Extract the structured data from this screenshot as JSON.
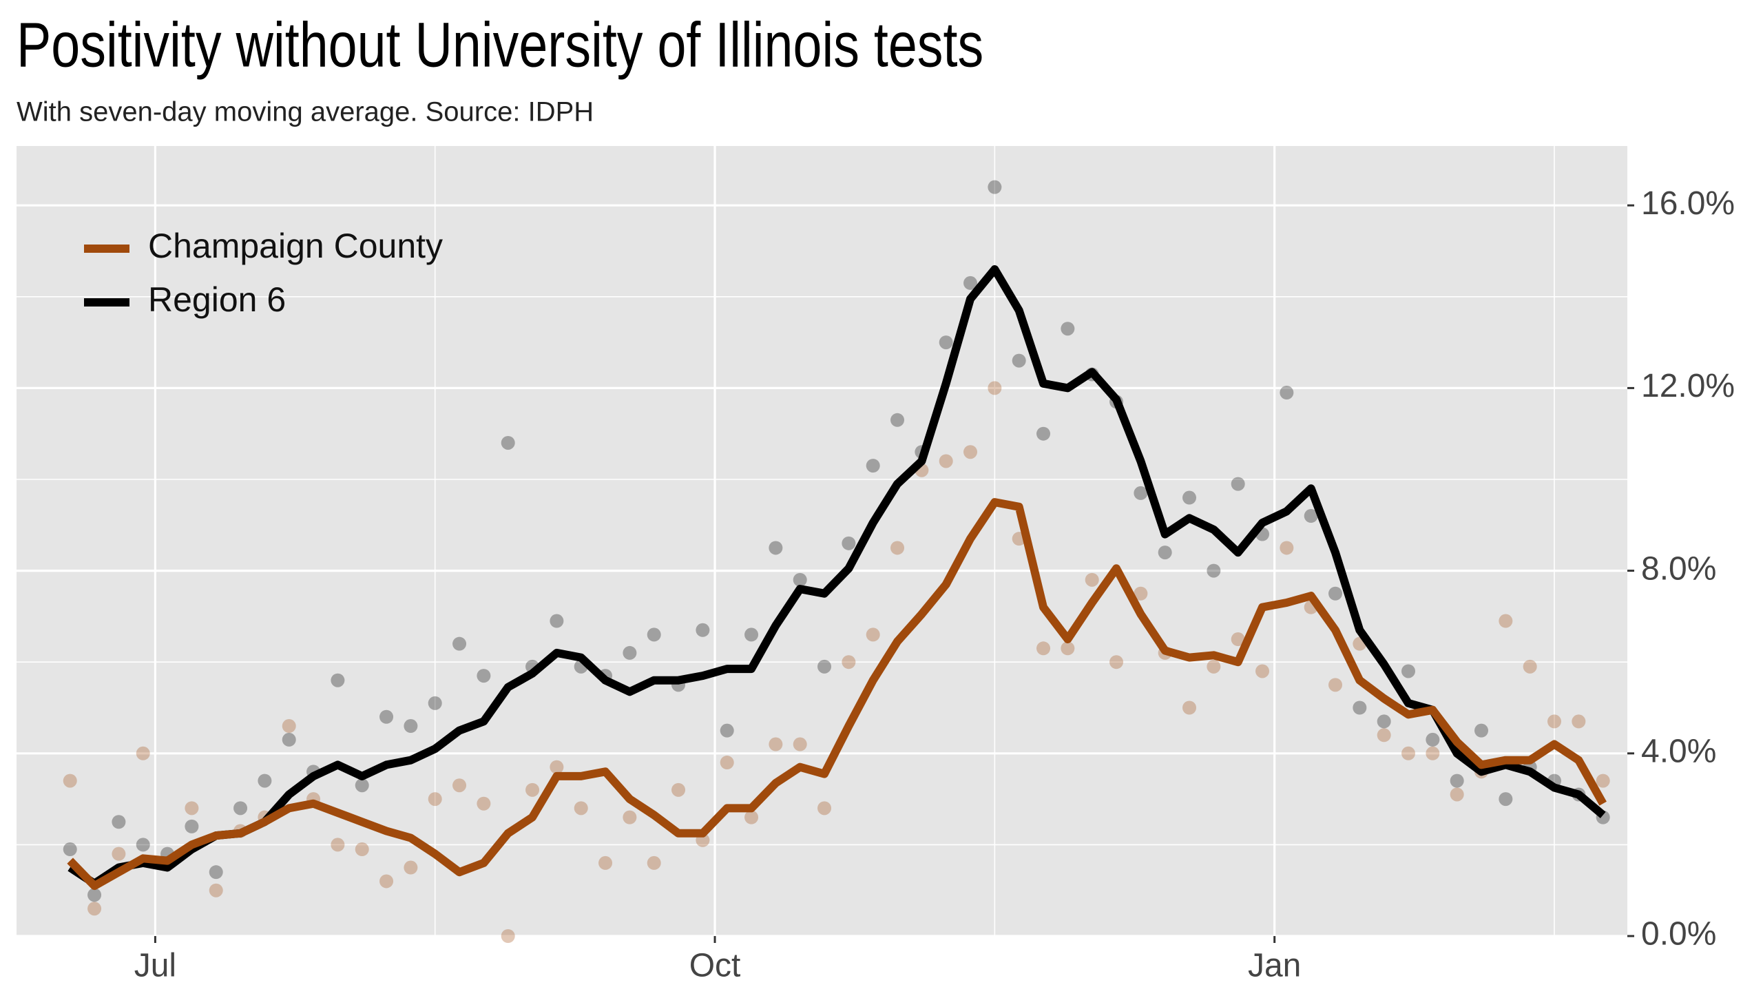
{
  "chart_data": {
    "type": "line",
    "title": "Positivity without University of Illinois tests",
    "subtitle": "With seven-day moving average. Source: IDPH",
    "x": [
      -14,
      -10,
      -6,
      -2,
      2,
      6,
      10,
      14,
      18,
      22,
      26,
      30,
      34,
      38,
      42,
      46,
      50,
      54,
      58,
      62,
      66,
      70,
      74,
      78,
      82,
      86,
      90,
      94,
      98,
      102,
      106,
      110,
      114,
      118,
      122,
      126,
      130,
      134,
      138,
      142,
      146,
      150,
      154,
      158,
      162,
      166,
      170,
      174,
      178,
      182,
      186,
      190,
      194,
      198,
      202,
      206,
      210,
      214,
      218,
      222,
      226,
      230,
      234,
      238
    ],
    "xlim": [
      -22.8,
      242
    ],
    "xticks": [
      {
        "value": 0,
        "label": "Jul"
      },
      {
        "value": 92,
        "label": "Oct"
      },
      {
        "value": 184,
        "label": "Jan"
      }
    ],
    "xminorticks": [
      46,
      138,
      230
    ],
    "ylim": [
      0,
      17.3
    ],
    "yticks": [
      {
        "value": 0,
        "label": "0.0%"
      },
      {
        "value": 4,
        "label": "4.0%"
      },
      {
        "value": 8,
        "label": "8.0%"
      },
      {
        "value": 12,
        "label": "12.0%"
      },
      {
        "value": 16,
        "label": "16.0%"
      }
    ],
    "yminorticks": [
      2,
      6,
      10,
      14
    ],
    "grid": true,
    "legend": "top-left",
    "series": [
      {
        "name": "Champaign County",
        "color": "#a04a0c",
        "values": [
          1.65,
          1.1,
          1.4,
          1.7,
          1.65,
          2.0,
          2.2,
          2.25,
          2.5,
          2.8,
          2.9,
          2.7,
          2.5,
          2.3,
          2.15,
          1.8,
          1.4,
          1.6,
          2.25,
          2.6,
          3.5,
          3.5,
          3.6,
          3.0,
          2.65,
          2.25,
          2.25,
          2.8,
          2.8,
          3.35,
          3.7,
          3.55,
          4.6,
          5.6,
          6.45,
          7.05,
          7.7,
          8.7,
          9.5,
          9.4,
          7.2,
          6.5,
          7.3,
          8.05,
          7.05,
          6.25,
          6.1,
          6.15,
          6.0,
          7.2,
          7.3,
          7.45,
          6.7,
          5.6,
          5.2,
          4.85,
          4.95,
          4.25,
          3.75,
          3.85,
          3.85,
          4.2,
          3.85,
          2.9
        ],
        "daily": [
          3.4,
          0.6,
          1.8,
          4.0,
          1.6,
          2.8,
          1.0,
          2.3,
          2.6,
          4.6,
          3.0,
          2.0,
          1.9,
          1.2,
          1.5,
          3.0,
          3.3,
          2.9,
          0.0,
          3.2,
          3.7,
          2.8,
          1.6,
          2.6,
          1.6,
          3.2,
          2.1,
          3.8,
          2.6,
          4.2,
          4.2,
          2.8,
          6.0,
          6.6,
          8.5,
          10.2,
          10.4,
          10.6,
          12.0,
          8.7,
          6.3,
          6.3,
          7.8,
          6.0,
          7.5,
          6.2,
          5.0,
          5.9,
          6.5,
          5.8,
          8.5,
          7.2,
          5.5,
          6.4,
          4.4,
          4.0,
          4.0,
          3.1,
          3.6,
          6.9,
          5.9,
          4.7,
          4.7,
          3.4
        ]
      },
      {
        "name": "Region 6",
        "color": "#000000",
        "values": [
          1.5,
          1.15,
          1.5,
          1.6,
          1.5,
          1.9,
          2.2,
          2.25,
          2.5,
          3.1,
          3.5,
          3.75,
          3.5,
          3.75,
          3.85,
          4.1,
          4.5,
          4.7,
          5.45,
          5.75,
          6.2,
          6.1,
          5.6,
          5.35,
          5.6,
          5.6,
          5.7,
          5.85,
          5.85,
          6.8,
          7.6,
          7.5,
          8.05,
          9.05,
          9.9,
          10.4,
          12.1,
          13.95,
          14.6,
          13.7,
          12.1,
          12.0,
          12.35,
          11.75,
          10.4,
          8.8,
          9.15,
          8.9,
          8.4,
          9.05,
          9.3,
          9.8,
          8.4,
          6.7,
          5.95,
          5.1,
          4.95,
          4.0,
          3.6,
          3.75,
          3.6,
          3.25,
          3.1,
          2.65
        ],
        "daily": [
          1.9,
          0.9,
          2.5,
          2.0,
          1.8,
          2.4,
          1.4,
          2.8,
          3.4,
          4.3,
          3.6,
          5.6,
          3.3,
          4.8,
          4.6,
          5.1,
          6.4,
          5.7,
          10.8,
          5.9,
          6.9,
          5.9,
          5.7,
          6.2,
          6.6,
          5.5,
          6.7,
          4.5,
          6.6,
          8.5,
          7.8,
          5.9,
          8.6,
          10.3,
          11.3,
          10.6,
          13.0,
          14.3,
          16.4,
          12.6,
          11.0,
          13.3,
          12.3,
          11.7,
          9.7,
          8.4,
          9.6,
          8.0,
          9.9,
          8.8,
          11.9,
          9.2,
          7.5,
          5.0,
          4.7,
          5.8,
          4.3,
          3.4,
          4.5,
          3.0,
          3.7,
          3.4,
          3.1,
          2.6
        ]
      }
    ]
  }
}
